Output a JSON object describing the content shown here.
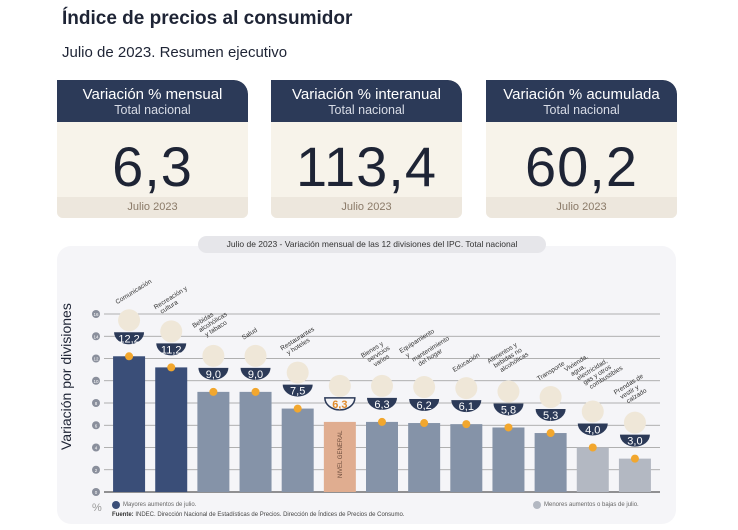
{
  "title": "Índice de precios al consumidor",
  "subtitle": "Julio de 2023. Resumen ejecutivo",
  "cards": [
    {
      "title": "Variación % mensual",
      "subtitle": "Total nacional",
      "value": "6,3",
      "footer": "Julio 2023"
    },
    {
      "title": "Variación % interanual",
      "subtitle": "Total nacional",
      "value": "113,4",
      "footer": "Julio 2023"
    },
    {
      "title": "Variación % acumulada",
      "subtitle": "Total nacional",
      "value": "60,2",
      "footer": "Julio 2023"
    }
  ],
  "chart_data": {
    "type": "bar",
    "title": "Julio de 2023 - Variación mensual de las 12 divisiones del IPC. Total nacional",
    "ylabel": "Variación por divisiones",
    "yunit": "%",
    "ylim": [
      0,
      16
    ],
    "yticks": [
      0,
      2,
      4,
      6,
      8,
      10,
      12,
      14,
      16
    ],
    "grid": true,
    "categories": [
      "Comunicación",
      "Recreación y cultura",
      "Bebidas alcohólicas y tabaco",
      "Salud",
      "Restaurantes y hoteles",
      "NIVEL GENERAL",
      "Bienes y servicios varios",
      "Equipamiento y mantenimiento del hogar",
      "Educación",
      "Alimentos y bebidas no alcohólicas",
      "Transporte",
      "Vivienda, agua, electricidad, gas y otros combustibles",
      "Prendas de vestir y calzado"
    ],
    "values": [
      12.2,
      11.2,
      9.0,
      9.0,
      7.5,
      6.3,
      6.3,
      6.2,
      6.1,
      5.8,
      5.3,
      4.0,
      3.0
    ],
    "value_labels": [
      "12,2",
      "11,2",
      "9,0",
      "9,0",
      "7,5",
      "6,3",
      "6,3",
      "6,2",
      "6,1",
      "5,8",
      "5,3",
      "4,0",
      "3,0"
    ],
    "groups": [
      "high",
      "high",
      "mid",
      "mid",
      "mid",
      "general",
      "mid",
      "mid",
      "mid",
      "mid",
      "mid",
      "low",
      "low"
    ],
    "colors": {
      "high": "#3a4e78",
      "mid": "#8593a8",
      "general": "#e0ad90",
      "low": "#b3b8c2",
      "badge": "#2c3a58",
      "marker": "#f2a72e"
    },
    "legend": [
      {
        "label": "Mayores aumentos de julio.",
        "group": "high"
      },
      {
        "label": "Menores aumentos o bajas de julio.",
        "group": "low"
      }
    ],
    "source_label": "Fuente:",
    "source": "INDEC. Dirección Nacional de Estadísticas de Precios. Dirección de Índices de Precios de Consumo."
  }
}
